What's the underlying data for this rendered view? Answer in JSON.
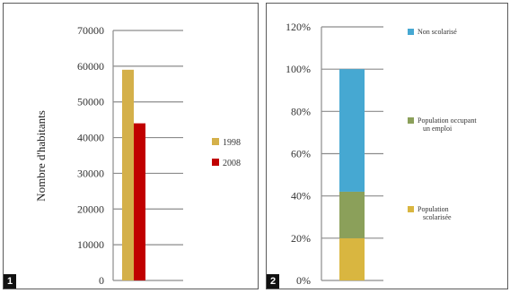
{
  "chart_data": [
    {
      "type": "bar",
      "panel_number": "1",
      "ylabel": "Nombre d'habitants",
      "ylim": [
        0,
        70000
      ],
      "y_ticks": [
        "0",
        "10000",
        "20000",
        "30000",
        "40000",
        "50000",
        "60000",
        "70000"
      ],
      "grid": true,
      "legend_position": "right",
      "series": [
        {
          "name": "1998",
          "color": "#d4b04a",
          "values": [
            59000
          ]
        },
        {
          "name": "2008",
          "color": "#c00000",
          "values": [
            44000
          ]
        }
      ]
    },
    {
      "type": "bar",
      "stacked": true,
      "panel_number": "2",
      "ylim": [
        0,
        120
      ],
      "y_ticks": [
        "0%",
        "20%",
        "40%",
        "60%",
        "80%",
        "100%",
        "120%"
      ],
      "grid": true,
      "legend_position": "right",
      "series": [
        {
          "name": "Population scolarisée",
          "color": "#d9b640",
          "values": [
            20
          ]
        },
        {
          "name": "Population occupant un emploi",
          "color": "#8ba05a",
          "values": [
            22
          ]
        },
        {
          "name": "Non scolarisé",
          "color": "#46a8d2",
          "values": [
            58
          ]
        }
      ]
    }
  ]
}
